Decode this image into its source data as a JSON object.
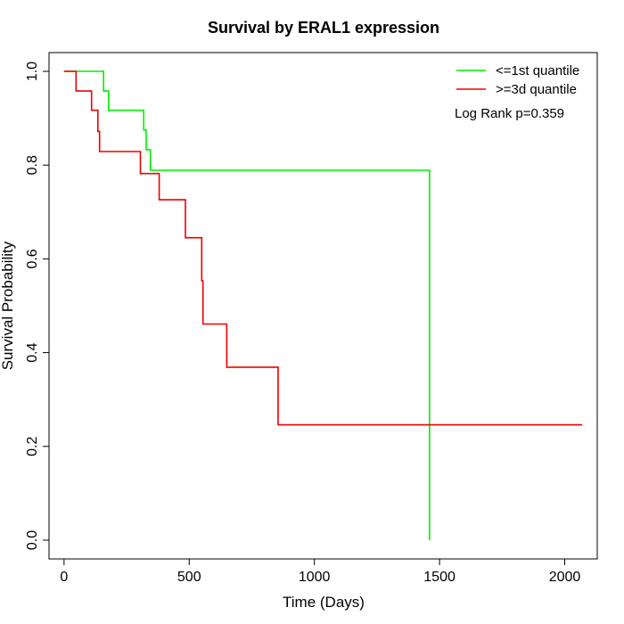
{
  "chart_data": {
    "type": "line",
    "title": "Survival by ERAL1 expression",
    "xlabel": "Time (Days)",
    "ylabel": "Survival Probability",
    "xlim": [
      -60,
      2130
    ],
    "ylim": [
      -0.04,
      1.04
    ],
    "x_ticks": [
      0,
      500,
      1000,
      1500,
      2000
    ],
    "y_ticks": [
      0.0,
      0.2,
      0.4,
      0.6,
      0.8,
      1.0
    ],
    "x_tick_labels": [
      "0",
      "500",
      "1000",
      "1500",
      "2000"
    ],
    "y_tick_labels": [
      "0.0",
      "0.2",
      "0.4",
      "0.6",
      "0.8",
      "1.0"
    ],
    "grid": false,
    "legend_position": "top-right",
    "annotation": "Log Rank p=0.359",
    "series": [
      {
        "name": "<=1st quantile",
        "color": "#00ee00",
        "step_points": [
          [
            0,
            1.0
          ],
          [
            158,
            1.0
          ],
          [
            158,
            0.958
          ],
          [
            178,
            0.958
          ],
          [
            178,
            0.917
          ],
          [
            318,
            0.917
          ],
          [
            318,
            0.875
          ],
          [
            328,
            0.875
          ],
          [
            328,
            0.833
          ],
          [
            345,
            0.833
          ],
          [
            345,
            0.789
          ],
          [
            1460,
            0.789
          ],
          [
            1460,
            0.0
          ]
        ]
      },
      {
        "name": ">=3d quantile",
        "color": "#ee0000",
        "step_points": [
          [
            0,
            1.0
          ],
          [
            48,
            1.0
          ],
          [
            48,
            0.958
          ],
          [
            110,
            0.958
          ],
          [
            110,
            0.917
          ],
          [
            135,
            0.917
          ],
          [
            135,
            0.872
          ],
          [
            142,
            0.872
          ],
          [
            142,
            0.829
          ],
          [
            305,
            0.829
          ],
          [
            305,
            0.782
          ],
          [
            380,
            0.782
          ],
          [
            380,
            0.726
          ],
          [
            485,
            0.726
          ],
          [
            485,
            0.645
          ],
          [
            550,
            0.645
          ],
          [
            550,
            0.553
          ],
          [
            555,
            0.553
          ],
          [
            555,
            0.461
          ],
          [
            650,
            0.461
          ],
          [
            650,
            0.369
          ],
          [
            855,
            0.369
          ],
          [
            855,
            0.246
          ],
          [
            2070,
            0.246
          ]
        ]
      }
    ]
  }
}
